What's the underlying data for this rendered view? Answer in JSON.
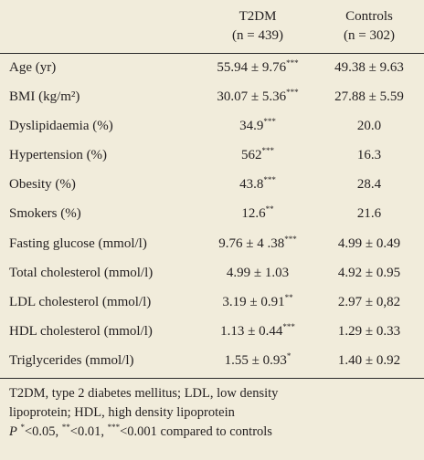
{
  "header": {
    "t2dm_title": "T2DM",
    "t2dm_n": "(n = 439)",
    "controls_title": "Controls",
    "controls_n": "(n = 302)"
  },
  "rows": [
    {
      "label": "Age (yr)",
      "t2dm": "55.94 ± 9.76",
      "t2dm_sig": "***",
      "controls": "49.38 ± 9.63"
    },
    {
      "label": "BMI (kg/m²)",
      "t2dm": "30.07 ± 5.36",
      "t2dm_sig": "***",
      "controls": "27.88 ± 5.59"
    },
    {
      "label": "Dyslipidaemia (%)",
      "t2dm": "34.9",
      "t2dm_sig": "***",
      "controls": "20.0"
    },
    {
      "label": "Hypertension (%)",
      "t2dm": "562",
      "t2dm_sig": "***",
      "controls": "16.3"
    },
    {
      "label": "Obesity (%)",
      "t2dm": "43.8",
      "t2dm_sig": "***",
      "controls": "28.4"
    },
    {
      "label": "Smokers (%)",
      "t2dm": "12.6",
      "t2dm_sig": "**",
      "controls": "21.6"
    },
    {
      "label": "Fasting glucose (mmol/l)",
      "t2dm": "9.76 ± 4 .38",
      "t2dm_sig": "***",
      "controls": "4.99 ± 0.49"
    },
    {
      "label": "Total cholesterol (mmol/l)",
      "t2dm": "4.99 ± 1.03",
      "t2dm_sig": "",
      "controls": "4.92 ± 0.95"
    },
    {
      "label": "LDL cholesterol (mmol/l)",
      "t2dm": "3.19 ± 0.91",
      "t2dm_sig": "**",
      "controls": "2.97 ± 0,82"
    },
    {
      "label": "HDL cholesterol (mmol/l)",
      "t2dm": "1.13 ± 0.44",
      "t2dm_sig": "***",
      "controls": "1.29 ± 0.33"
    },
    {
      "label": "Triglycerides (mmol/l)",
      "t2dm": "1.55 ± 0.93",
      "t2dm_sig": "*",
      "controls": "1.40 ± 0.92"
    }
  ],
  "footer": {
    "line1": "T2DM, type 2 diabetes mellitus; LDL, low density",
    "line2": "lipoprotein; HDL, high density lipoprotein",
    "p_label": "P",
    "sig1": "*",
    "sig1_text": "<0.05, ",
    "sig2": "**",
    "sig2_text": "<0.01, ",
    "sig3": "***",
    "sig3_text": "<0.001 compared to controls"
  }
}
